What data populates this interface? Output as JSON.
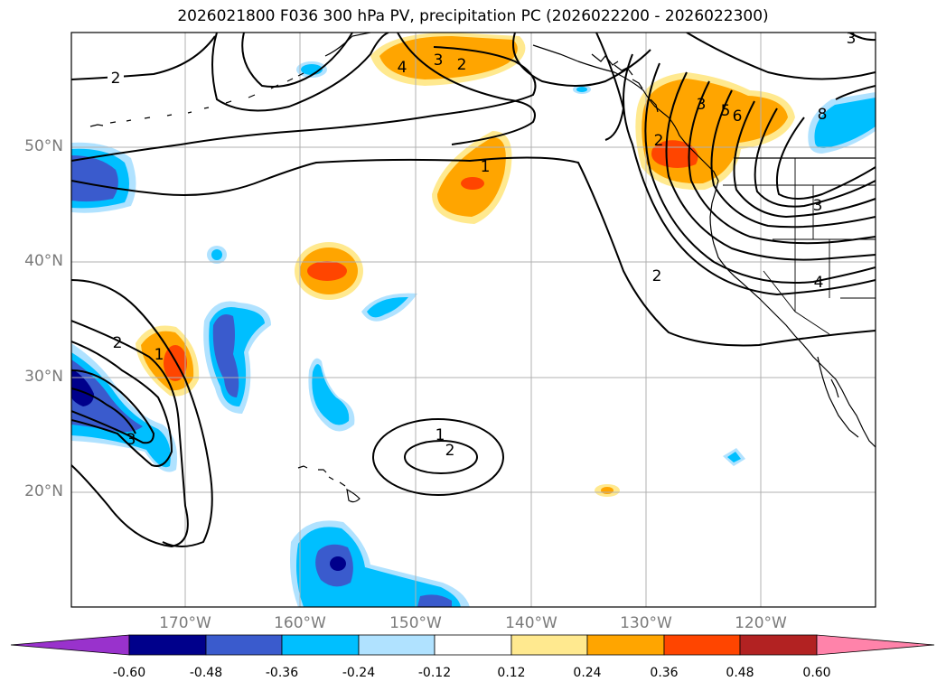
{
  "title": "2026021800 F036 300 hPa PV, precipitation PC (2026022200 - 2026022300)",
  "lat_labels": [
    "50°N",
    "40°N",
    "30°N",
    "20°N"
  ],
  "lon_labels": [
    "170°W",
    "160°W",
    "150°W",
    "140°W",
    "130°W",
    "120°W"
  ],
  "contour_labels": [
    "2",
    "4",
    "3",
    "2",
    "1",
    "2",
    "3",
    "5",
    "6",
    "8",
    "3",
    "2",
    "4",
    "2",
    "1",
    "3",
    "1",
    "2",
    "3"
  ],
  "colorbar": {
    "tick_labels": [
      "-0.60",
      "-0.48",
      "-0.36",
      "-0.24",
      "-0.12",
      "0.12",
      "0.24",
      "0.36",
      "0.48",
      "0.60"
    ],
    "colors": [
      "#9932cc",
      "#00008b",
      "#3a5bcd",
      "#00bfff",
      "#b0e2ff",
      "#ffffff",
      "#ffe98f",
      "#ffa500",
      "#ff4500",
      "#b22222",
      "#ff83aa"
    ]
  }
}
